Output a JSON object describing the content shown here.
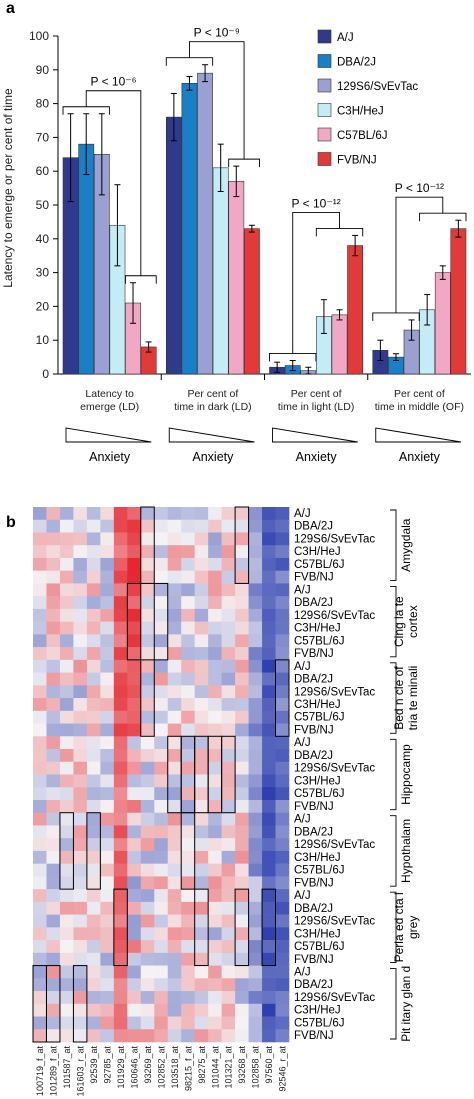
{
  "colors": {
    "strains": [
      "#303a8c",
      "#1980c8",
      "#9ba0d2",
      "#c4ecf4",
      "#f0a8c4",
      "#e23a38"
    ],
    "heat_low": "#2c3fae",
    "heat_mid": "#f4f2f4",
    "heat_high": "#e51c24"
  },
  "panel_a": {
    "label": "a",
    "ylabel": "Latency to emerge or per cent of time",
    "legend": [
      "A/J",
      "DBA/2J",
      "129S6/SvEvTac",
      "C3H/HeJ",
      "C57BL/6J",
      "FVB/NJ"
    ],
    "anxiety_label": "Anxiety"
  },
  "chart_data": {
    "type": "bar",
    "title": "",
    "ylabel": "Latency to emerge or per cent of time",
    "ylim": [
      0,
      100
    ],
    "yticks": [
      0,
      10,
      20,
      30,
      40,
      50,
      60,
      70,
      80,
      90,
      100
    ],
    "grid": false,
    "legend_position": "top-right",
    "categories": [
      "Latency to emerge (LD)",
      "Per cent of time in dark (LD)",
      "Per cent of time in light (LD)",
      "Per cent of time in middle (OF)"
    ],
    "category_lines": [
      [
        "Latency to",
        "emerge (LD)"
      ],
      [
        "Per cent of",
        "time in dark (LD)"
      ],
      [
        "Per cent of",
        "time in light (LD)"
      ],
      [
        "Per cent of",
        "time in middle (OF)"
      ]
    ],
    "series": [
      {
        "name": "A/J",
        "values": [
          64,
          76,
          2,
          7
        ],
        "errors": [
          13,
          7,
          1.5,
          3
        ]
      },
      {
        "name": "DBA/2J",
        "values": [
          68,
          86,
          2.5,
          5
        ],
        "errors": [
          9,
          2,
          1.5,
          1
        ]
      },
      {
        "name": "129S6/SvEvTac",
        "values": [
          65,
          89,
          1,
          13
        ],
        "errors": [
          12,
          2.5,
          1,
          3
        ]
      },
      {
        "name": "C3H/HeJ",
        "values": [
          44,
          61,
          17,
          19
        ],
        "errors": [
          12,
          7,
          5,
          4.5
        ]
      },
      {
        "name": "C57BL/6J",
        "values": [
          21,
          57,
          17.5,
          30
        ],
        "errors": [
          6,
          4.5,
          1.5,
          2
        ]
      },
      {
        "name": "FVB/NJ",
        "values": [
          8,
          43,
          38,
          43
        ],
        "errors": [
          1.5,
          1,
          3,
          2.5
        ]
      }
    ],
    "annotations": [
      "P < 10⁻⁶",
      "P < 10⁻⁹",
      "P < 10⁻¹²",
      "P < 10⁻¹²"
    ]
  },
  "panel_b": {
    "label": "b",
    "strains": [
      "A/J",
      "DBA/2J",
      "129S6/SvEvTac",
      "C3H/HeJ",
      "C57BL/6J",
      "FVB/NJ"
    ],
    "regions": [
      [
        "Amygdala"
      ],
      [
        "Cing la te",
        "cortex"
      ],
      [
        "Bed n cle  of",
        "tria te minali"
      ],
      [
        "Hippocamp"
      ],
      [
        "Hypothalam"
      ],
      [
        "Peria  ed cta  l",
        "grey"
      ],
      [
        "Pit itary glan d"
      ]
    ],
    "probes": [
      "100719_f_at",
      "101289_f_at",
      "101587_at",
      "161603_r_at",
      "92539_at",
      "92785_at",
      "101929_at",
      "160646_at",
      "93269_at",
      "102852_at",
      "103518_at",
      "98215_f_at",
      "98275_at",
      "101044_at",
      "101321_at",
      "93268_at",
      "102858_at",
      "97560_at",
      "92546_r_at"
    ]
  }
}
